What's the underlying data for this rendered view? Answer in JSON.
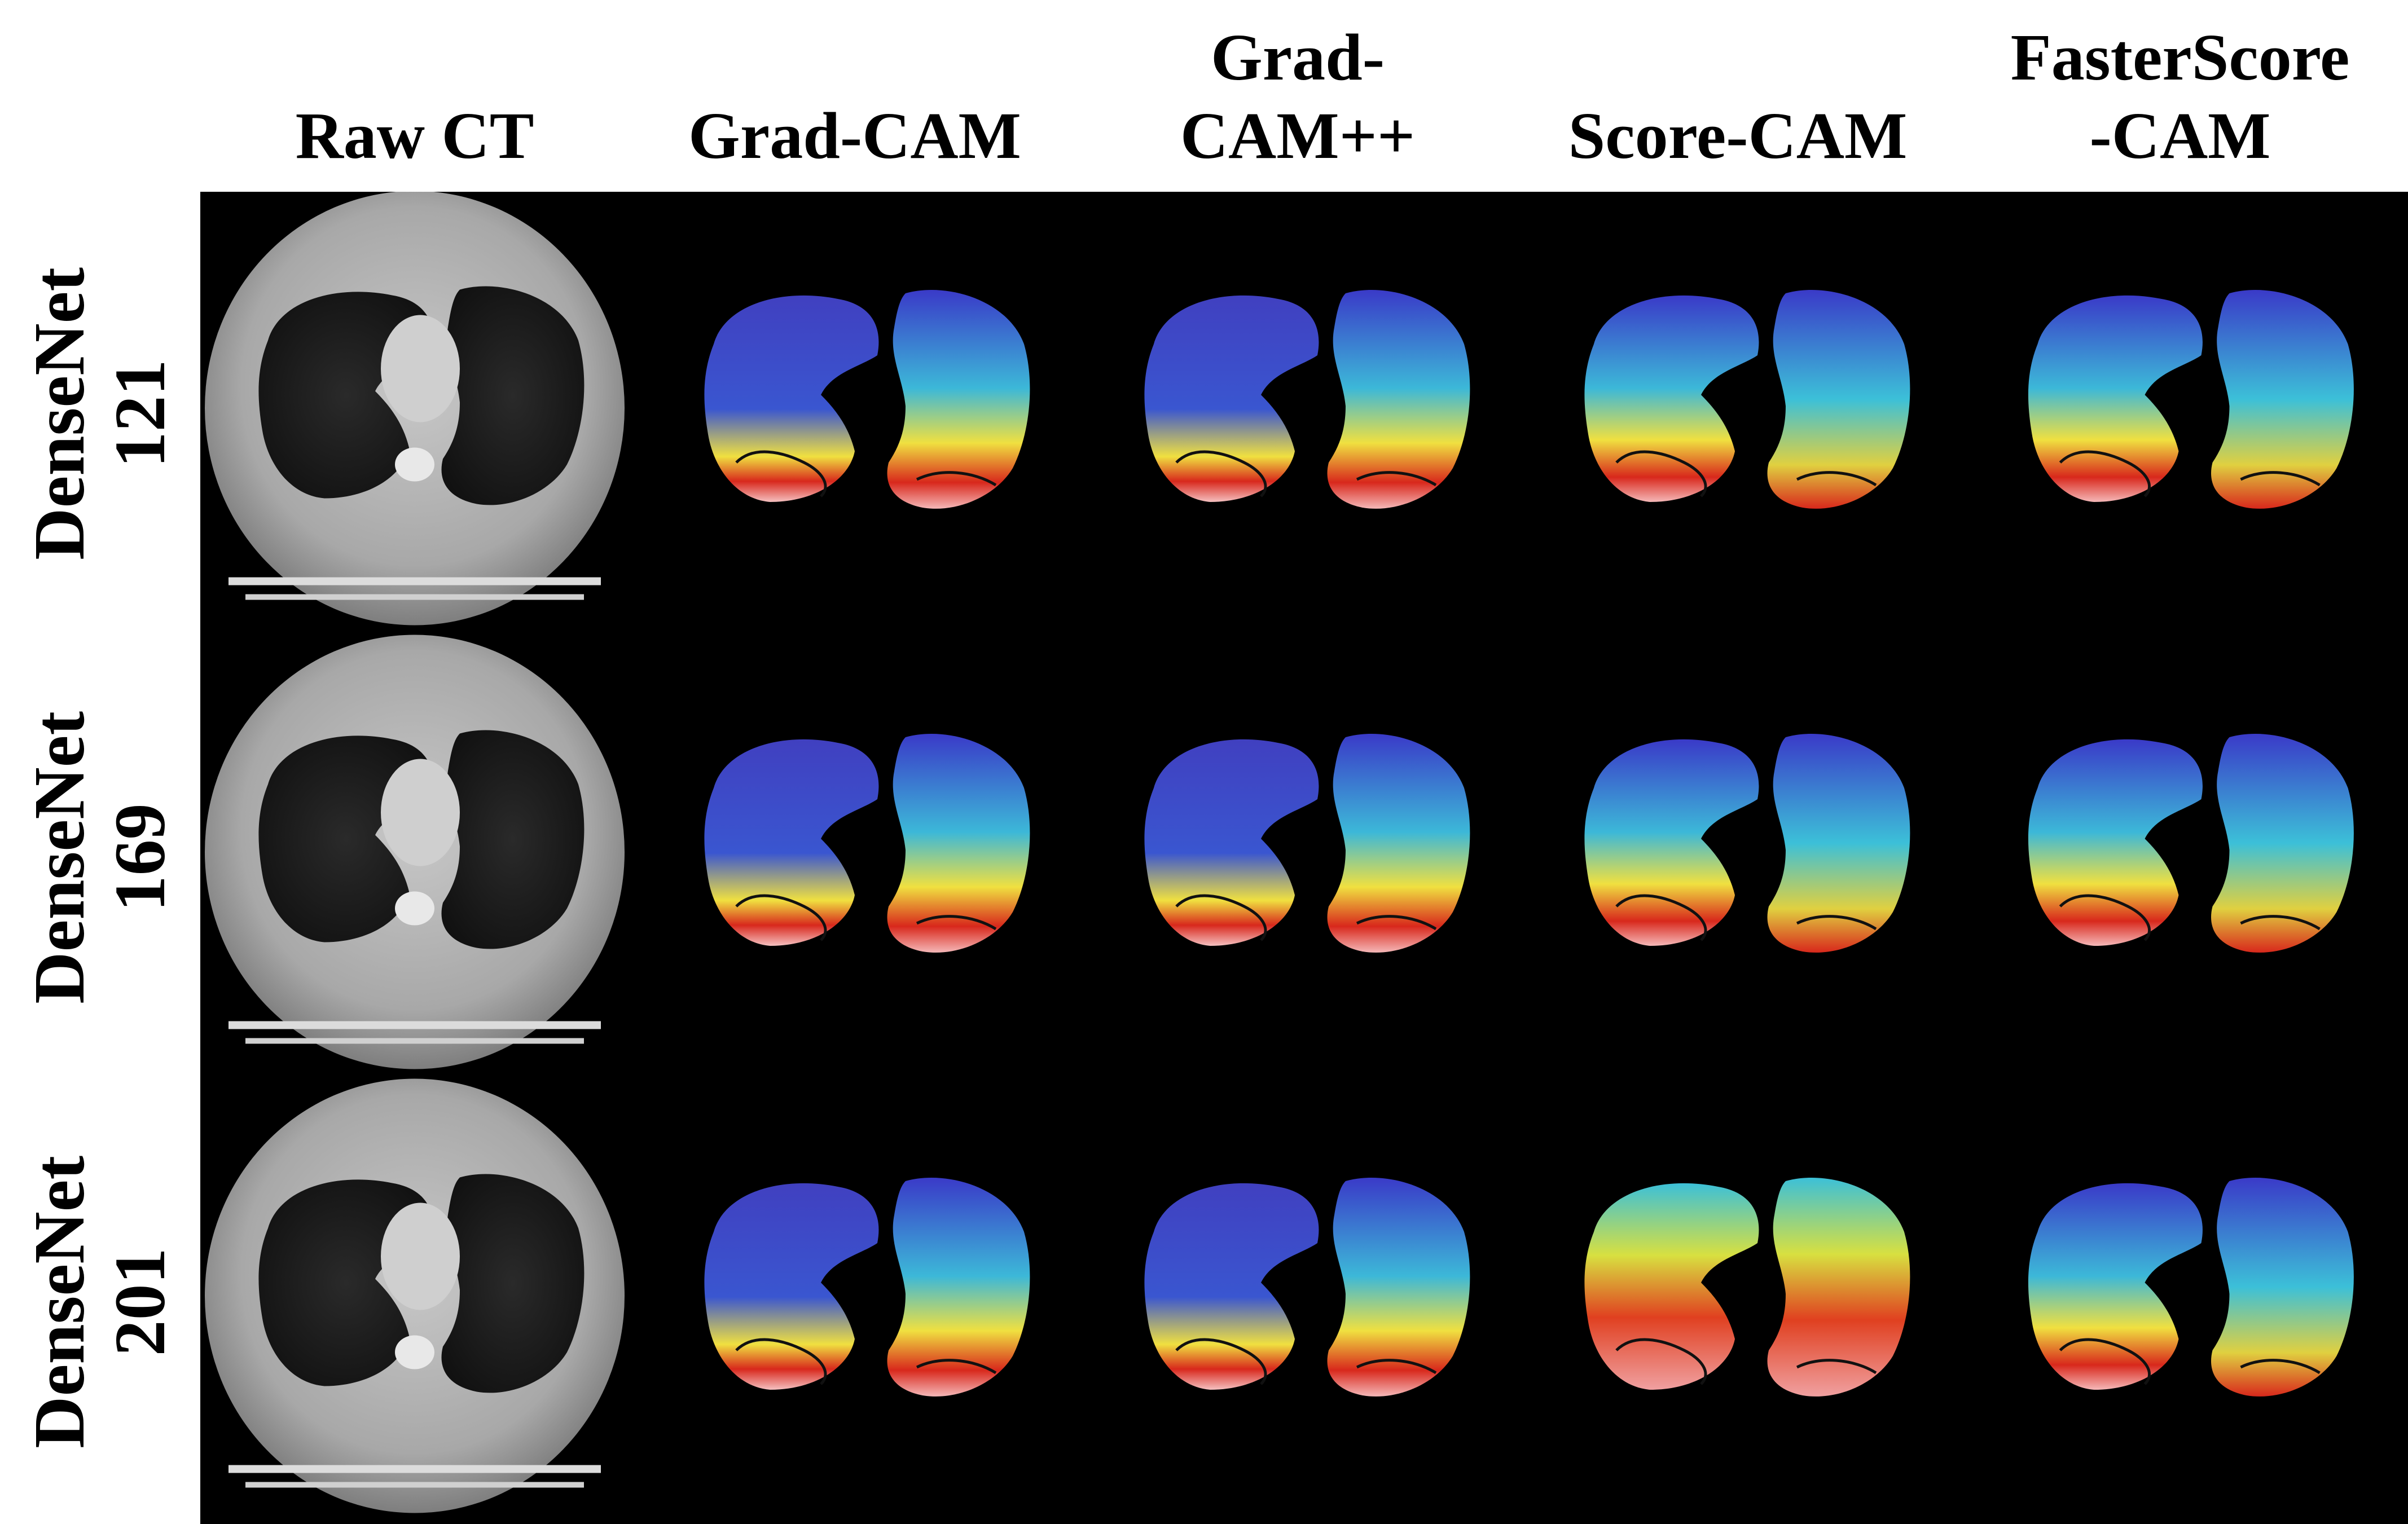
{
  "figure": {
    "column_headers": [
      "Raw CT",
      "Grad-CAM",
      "Grad-\nCAM++",
      "Score-CAM",
      "FasterScore\n-CAM"
    ],
    "row_headers": [
      "DenseNet\n121",
      "DenseNet\n169",
      "DenseNet\n201"
    ]
  },
  "colors": {
    "background": "#000000",
    "ct_gray": "#9a9a9a",
    "lung_dark": "#1a1a1a",
    "heatmap_blue": "#3a3ac8",
    "heatmap_cyan": "#3cc8d8",
    "heatmap_yellow": "#f0e040",
    "heatmap_red": "#d8281c"
  }
}
